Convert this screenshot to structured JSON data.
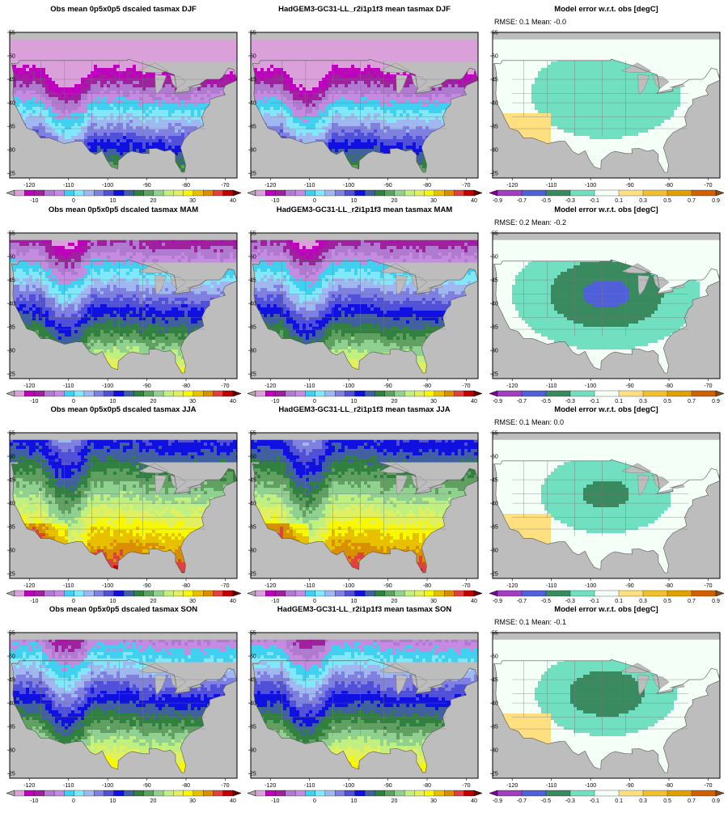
{
  "rows": [
    {
      "season": "DJF",
      "obs_title": "Obs mean 0p5x0p5 dscaled tasmax DJF",
      "model_title": "HadGEM3-GC31-LL_r2i1p1f3 mean tasmax DJF",
      "error_title": "Model error w.r.t. obs [degC]",
      "stats": "RMSE: 0.1  Mean: -0.0"
    },
    {
      "season": "MAM",
      "obs_title": "Obs mean 0p5x0p5 dscaled tasmax MAM",
      "model_title": "HadGEM3-GC31-LL_r2i1p1f3 mean tasmax MAM",
      "error_title": "Model error w.r.t. obs [degC]",
      "stats": "RMSE: 0.2  Mean: -0.2"
    },
    {
      "season": "JJA",
      "obs_title": "Obs mean 0p5x0p5 dscaled tasmax JJA",
      "model_title": "HadGEM3-GC31-LL_r2i1p1f3 mean tasmax JJA",
      "error_title": "Model error w.r.t. obs [degC]",
      "stats": "RMSE: 0.1  Mean: 0.0"
    },
    {
      "season": "SON",
      "obs_title": "Obs mean 0p5x0p5 dscaled tasmax SON",
      "model_title": "HadGEM3-GC31-LL_r2i1p1f3 mean tasmax SON",
      "error_title": "Model error w.r.t. obs [degC]",
      "stats": "RMSE: 0.1  Mean: -0.1"
    }
  ],
  "map_axes": {
    "lon_ticks": [
      "-120",
      "-110",
      "-100",
      "-90",
      "-80",
      "-70"
    ],
    "lat_ticks": [
      "55",
      "50",
      "45",
      "40",
      "35",
      "30",
      "25"
    ]
  },
  "temp_colorbar": {
    "labels": [
      "-10",
      "0",
      "10",
      "20",
      "30",
      "40"
    ],
    "colors": [
      "#aaaaaa",
      "#d9a0d9",
      "#bf00bf",
      "#a020a0",
      "#b07ad0",
      "#c48be0",
      "#40d0f0",
      "#80e8f8",
      "#a0b8f0",
      "#8080e0",
      "#5050d8",
      "#1010e0",
      "#4060a0",
      "#308040",
      "#60a060",
      "#90d090",
      "#c0f080",
      "#e0f060",
      "#f8f800",
      "#e8c000",
      "#d89000",
      "#e04040",
      "#c00000",
      "#600000"
    ]
  },
  "error_colorbar": {
    "labels": [
      "-0.9",
      "-0.7",
      "-0.5",
      "-0.3",
      "-0.1",
      "0.1",
      "0.3",
      "0.5",
      "0.7",
      "0.9"
    ],
    "colors": [
      "#8000a0",
      "#a040c0",
      "#5060d8",
      "#3a8a60",
      "#70e0c0",
      "#f4fff8",
      "#ffe080",
      "#f0c030",
      "#e0a000",
      "#d06000",
      "#805020"
    ]
  }
}
